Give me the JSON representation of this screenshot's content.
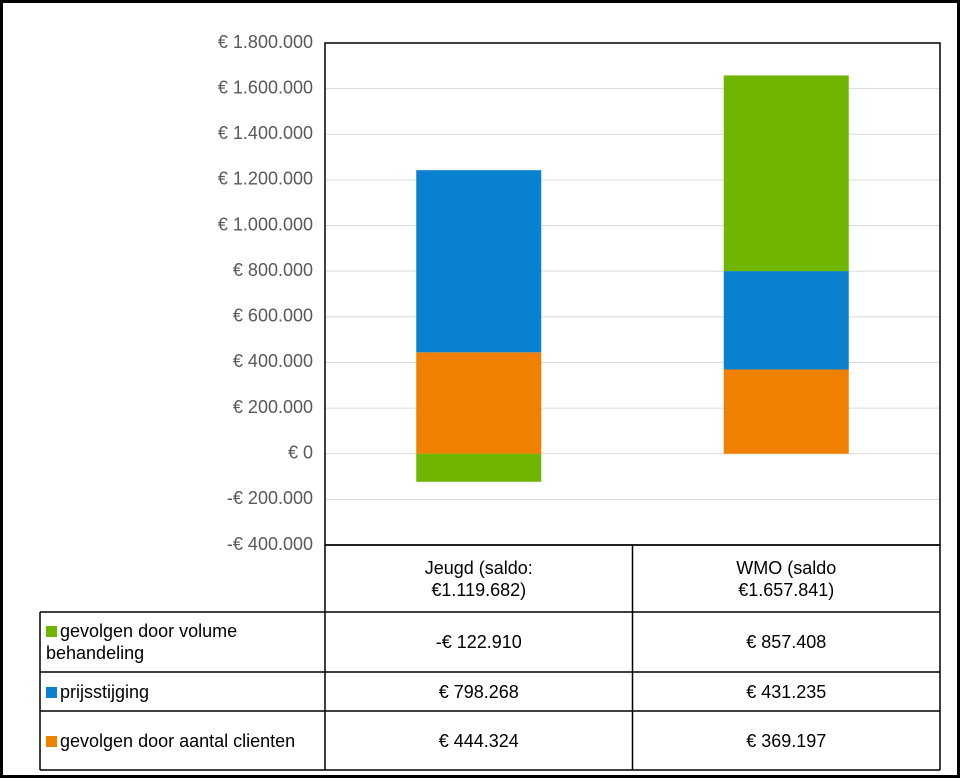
{
  "chart_data": {
    "type": "stacked-bar",
    "categories": [
      "Jeugd (saldo: €1.119.682)",
      "WMO (saldo €1.657.841)"
    ],
    "series": [
      {
        "name": "gevolgen door volume behandeling",
        "color": "#70b500",
        "values": [
          -122910,
          857408
        ],
        "value_labels": [
          "-€ 122.910",
          "€ 857.408"
        ]
      },
      {
        "name": "prijsstijging",
        "color": "#0a81cf",
        "values": [
          798268,
          431235
        ],
        "value_labels": [
          "€ 798.268",
          "€ 431.235"
        ]
      },
      {
        "name": "gevolgen door aantal clienten",
        "color": "#ef8000",
        "values": [
          444324,
          369197
        ],
        "value_labels": [
          "€ 444.324",
          "€ 369.197"
        ]
      }
    ],
    "ylim": [
      -400000,
      1800000
    ],
    "yticks": [
      {
        "value": -400000,
        "label": "-€ 400.000"
      },
      {
        "value": -200000,
        "label": "-€ 200.000"
      },
      {
        "value": 0,
        "label": "€ 0"
      },
      {
        "value": 200000,
        "label": "€ 200.000"
      },
      {
        "value": 400000,
        "label": "€ 400.000"
      },
      {
        "value": 600000,
        "label": "€ 600.000"
      },
      {
        "value": 800000,
        "label": "€ 800.000"
      },
      {
        "value": 1000000,
        "label": "€ 1.000.000"
      },
      {
        "value": 1200000,
        "label": "€ 1.200.000"
      },
      {
        "value": 1400000,
        "label": "€ 1.400.000"
      },
      {
        "value": 1600000,
        "label": "€ 1.600.000"
      },
      {
        "value": 1800000,
        "label": "€ 1.800.000"
      }
    ],
    "grid": true,
    "legend": "table"
  }
}
